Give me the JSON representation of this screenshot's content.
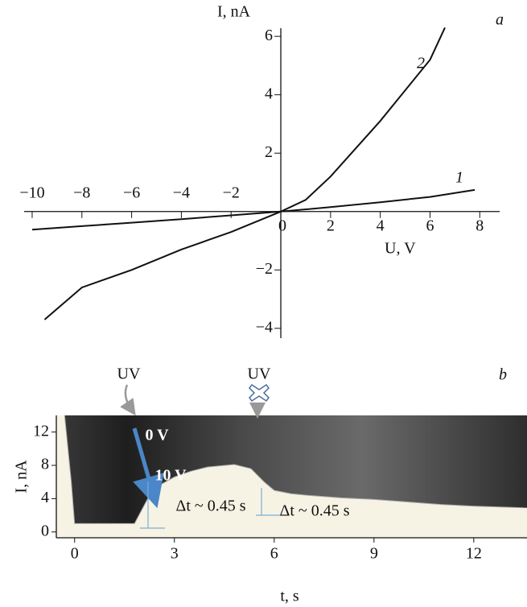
{
  "chart_data": [
    {
      "type": "line",
      "panel_label": "a",
      "x_label": "U, V",
      "y_label": "I, nA",
      "xlim": [
        -10.4,
        8.8
      ],
      "ylim": [
        -4.5,
        6.6
      ],
      "xticks": [
        {
          "value": -10,
          "label": "−10"
        },
        {
          "value": -8,
          "label": "−8"
        },
        {
          "value": -6,
          "label": "−6"
        },
        {
          "value": -4,
          "label": "−4"
        },
        {
          "value": -2,
          "label": "−2"
        },
        0,
        2,
        4,
        6,
        8
      ],
      "yticks": [
        {
          "value": -4,
          "label": "−4"
        },
        {
          "value": -2,
          "label": "−2"
        },
        2,
        4,
        6
      ],
      "series": [
        {
          "label": "1",
          "color": "#111111",
          "x": [
            -10,
            -8,
            -6,
            -4,
            -2,
            0,
            2,
            4,
            6,
            7.8
          ],
          "values": [
            -0.62,
            -0.5,
            -0.38,
            -0.26,
            -0.13,
            0,
            0.15,
            0.32,
            0.5,
            0.74
          ]
        },
        {
          "label": "2",
          "color": "#111111",
          "x": [
            -9.5,
            -8,
            -6,
            -4,
            -2,
            0,
            1,
            2,
            4,
            6,
            6.6
          ],
          "values": [
            -3.7,
            -2.6,
            -2.0,
            -1.3,
            -0.7,
            0,
            0.4,
            1.2,
            3.1,
            5.2,
            6.3
          ]
        }
      ]
    },
    {
      "type": "area",
      "panel_label": "b",
      "x_label": "t, s",
      "y_label": "I, nA",
      "xlim": [
        -0.55,
        13.6
      ],
      "ylim": [
        -0.7,
        14.0
      ],
      "xticks": [
        0,
        3,
        6,
        9,
        12
      ],
      "yticks": [
        0,
        4,
        8,
        12
      ],
      "x": [
        -0.3,
        -0.1,
        0,
        1.8,
        2.0,
        2.2,
        2.5,
        3,
        3.5,
        4,
        4.8,
        5.3,
        5.7,
        6,
        6.5,
        7,
        8,
        9,
        10,
        11,
        12,
        13.5
      ],
      "values": [
        14,
        6,
        1,
        1,
        2.5,
        4,
        5.5,
        6.6,
        7.3,
        7.8,
        8.1,
        7.6,
        6,
        5,
        4.6,
        4.4,
        4.1,
        3.9,
        3.6,
        3.3,
        3.1,
        2.9
      ],
      "annotations": [
        "UV",
        "UV",
        "0 V",
        "10 V",
        "Δt ~ 0.45 s",
        "Δt ~ 0.45 s"
      ]
    }
  ]
}
